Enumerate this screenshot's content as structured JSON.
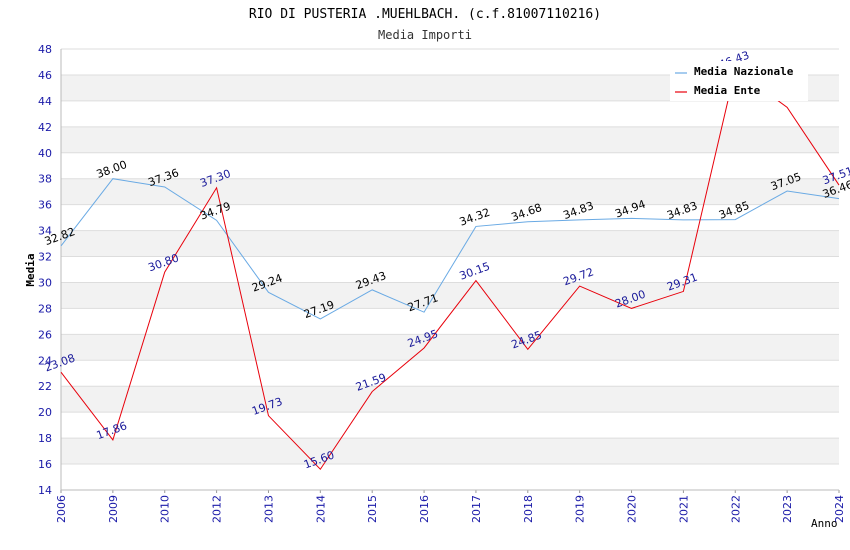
{
  "chart_data": {
    "type": "line",
    "title": "RIO DI PUSTERIA .MUEHLBACH. (c.f.81007110216)",
    "subtitle": "Media Importi",
    "xlabel": "Anno",
    "ylabel": "Media",
    "ylim": [
      14,
      48
    ],
    "ytick_step": 2,
    "categories": [
      "2006",
      "2009",
      "2010",
      "2012",
      "2013",
      "2014",
      "2015",
      "2016",
      "2017",
      "2018",
      "2019",
      "2020",
      "2021",
      "2022",
      "2023",
      "2024"
    ],
    "legend_position": "top-right",
    "series": [
      {
        "name": "Media Nazionale",
        "color": "#6aaae4",
        "label_color": "#000000",
        "values": [
          32.82,
          38.0,
          37.36,
          34.79,
          29.24,
          27.19,
          29.43,
          27.71,
          34.32,
          34.68,
          34.83,
          34.94,
          34.83,
          34.85,
          37.05,
          36.46
        ],
        "labels": [
          "32.82",
          "38.00",
          "37.36",
          "34.79",
          "29.24",
          "27.19",
          "29.43",
          "27.71",
          "34.32",
          "34.68",
          "34.83",
          "34.94",
          "34.83",
          "34.85",
          "37.05",
          "36.46"
        ]
      },
      {
        "name": "Media Ente",
        "color": "#e8000b",
        "label_color": "#1a1a9a",
        "values": [
          23.08,
          17.86,
          30.8,
          37.3,
          19.73,
          15.6,
          21.59,
          24.95,
          30.15,
          24.85,
          29.72,
          28.0,
          29.31,
          46.43,
          43.5,
          37.51
        ],
        "labels": [
          "23.08",
          "17.86",
          "30.80",
          "37.30",
          "19.73",
          "15.60",
          "21.59",
          "24.95",
          "30.15",
          "24.85",
          "29.72",
          "28.00",
          "29.31",
          "46.43",
          "",
          "37.51"
        ]
      }
    ]
  }
}
